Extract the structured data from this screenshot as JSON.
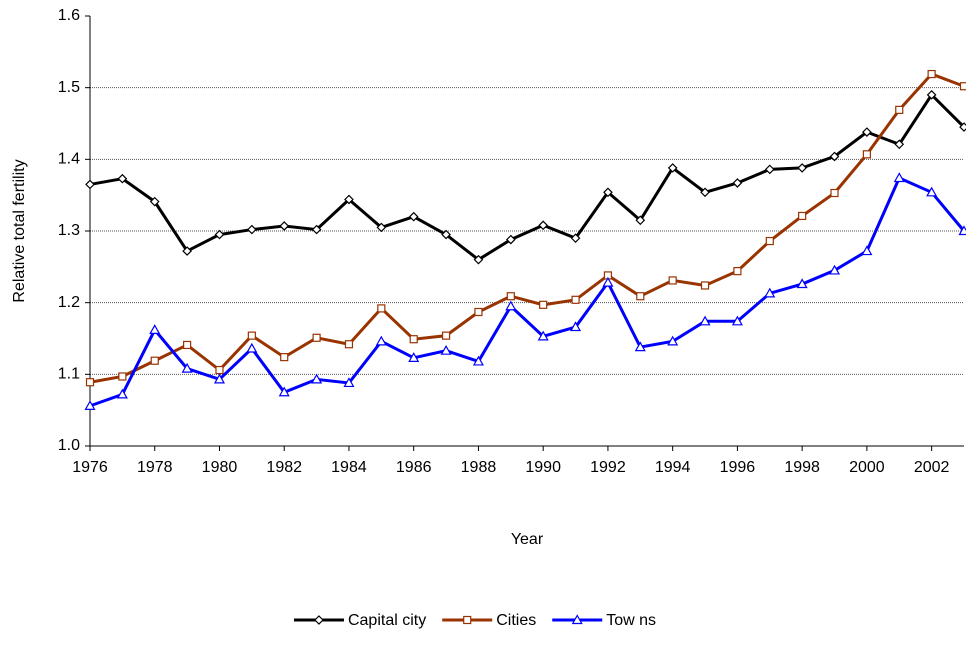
{
  "chart_data": {
    "type": "line",
    "x_label": "Year",
    "y_label": "Relative total fertility",
    "x": [
      1976,
      1977,
      1978,
      1979,
      1980,
      1981,
      1982,
      1983,
      1984,
      1985,
      1986,
      1987,
      1988,
      1989,
      1990,
      1991,
      1992,
      1993,
      1994,
      1995,
      1996,
      1997,
      1998,
      1999,
      2000,
      2001,
      2002,
      2003
    ],
    "xlim": [
      1976,
      2003
    ],
    "xticks": [
      1976,
      1978,
      1980,
      1982,
      1984,
      1986,
      1988,
      1990,
      1992,
      1994,
      1996,
      1998,
      2000,
      2002
    ],
    "ylim": [
      1,
      1.6
    ],
    "yticks": [
      {
        "value": 1,
        "label": "1.0"
      },
      1.1,
      1.2,
      1.3,
      1.4,
      1.5,
      1.6
    ],
    "grid": true,
    "legend": "bottom",
    "series": [
      {
        "name": "Capital city",
        "color": "#000000",
        "marker": "diamond",
        "values": [
          1.365,
          1.373,
          1.341,
          1.272,
          1.295,
          1.302,
          1.307,
          1.302,
          1.344,
          1.305,
          1.32,
          1.295,
          1.26,
          1.288,
          1.308,
          1.29,
          1.354,
          1.315,
          1.388,
          1.354,
          1.367,
          1.386,
          1.388,
          1.404,
          1.438,
          1.421,
          1.49,
          1.445
        ]
      },
      {
        "name": "Cities",
        "color": "#993300",
        "marker": "square",
        "values": [
          1.089,
          1.097,
          1.119,
          1.141,
          1.106,
          1.154,
          1.124,
          1.151,
          1.142,
          1.192,
          1.149,
          1.154,
          1.187,
          1.209,
          1.197,
          1.204,
          1.238,
          1.209,
          1.231,
          1.224,
          1.244,
          1.286,
          1.321,
          1.353,
          1.407,
          1.469,
          1.519,
          1.502
        ]
      },
      {
        "name": "Tow ns",
        "color": "#0000ff",
        "marker": "triangle",
        "values": [
          1.056,
          1.072,
          1.162,
          1.108,
          1.093,
          1.136,
          1.075,
          1.093,
          1.088,
          1.146,
          1.123,
          1.133,
          1.118,
          1.195,
          1.153,
          1.166,
          1.228,
          1.138,
          1.146,
          1.174,
          1.174,
          1.213,
          1.226,
          1.245,
          1.272,
          1.374,
          1.354,
          1.3
        ]
      }
    ]
  }
}
